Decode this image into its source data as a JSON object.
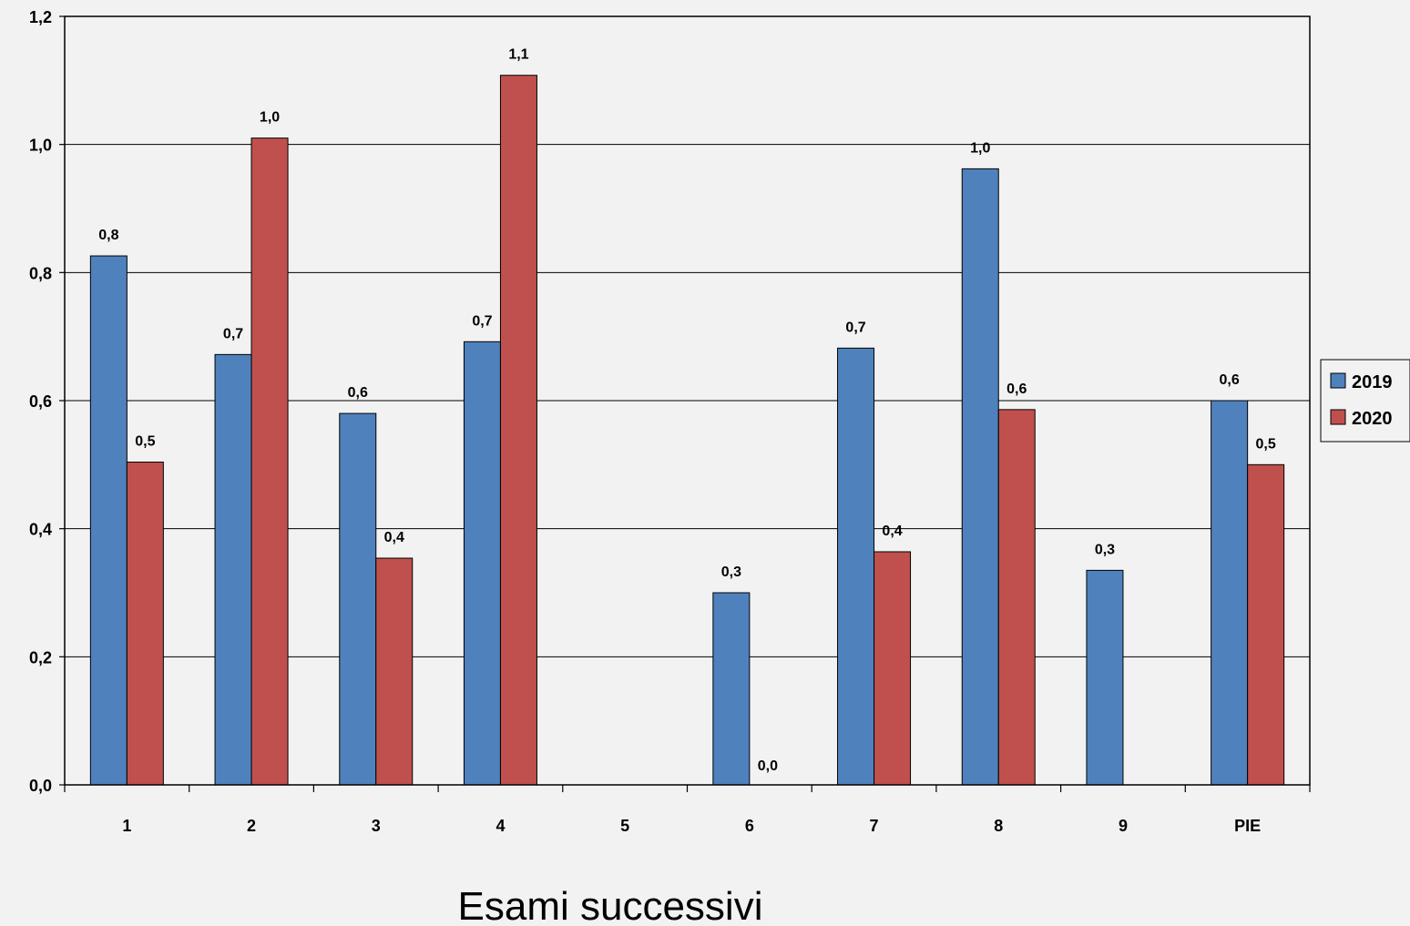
{
  "chart_data": {
    "type": "bar",
    "title": "",
    "xlabel": "Esami successivi",
    "ylabel": "",
    "ylim": [
      0,
      1.2
    ],
    "yticks": [
      0.0,
      0.2,
      0.4,
      0.6,
      0.8,
      1.0,
      1.2
    ],
    "ytick_labels": [
      "0,0",
      "0,2",
      "0,4",
      "0,6",
      "0,8",
      "1,0",
      "1,2"
    ],
    "categories": [
      "1",
      "2",
      "3",
      "4",
      "5",
      "6",
      "7",
      "8",
      "9",
      "PIE"
    ],
    "series": [
      {
        "name": "2019",
        "color": "#4f81bd",
        "values": [
          0.826,
          0.672,
          0.58,
          0.692,
          null,
          0.3,
          0.682,
          0.962,
          0.335,
          0.6
        ],
        "labels": [
          "0,8",
          "0,7",
          "0,6",
          "0,7",
          "",
          "0,3",
          "0,7",
          "1,0",
          "0,3",
          "0,6"
        ]
      },
      {
        "name": "2020",
        "color": "#c0504d",
        "values": [
          0.504,
          1.01,
          0.354,
          1.108,
          null,
          0.0,
          0.364,
          0.586,
          null,
          0.5
        ],
        "labels": [
          "0,5",
          "1,0",
          "0,4",
          "1,1",
          "",
          "0,0",
          "0,4",
          "0,6",
          "",
          "0,5"
        ]
      }
    ],
    "grid": true,
    "legend": "right"
  }
}
